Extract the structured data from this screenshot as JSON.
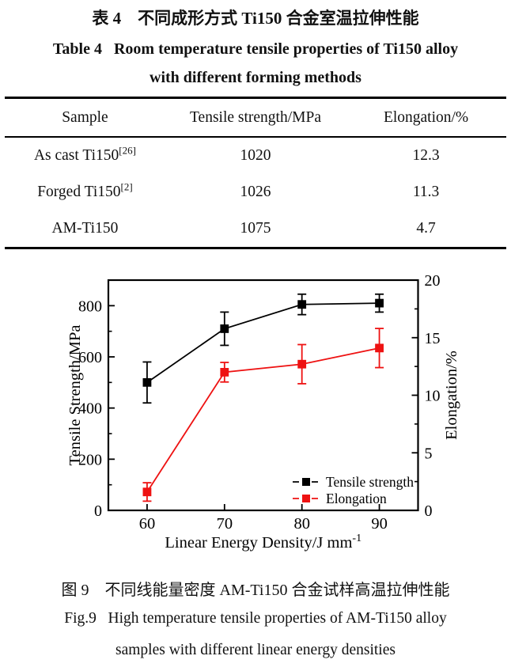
{
  "table_section": {
    "title_zh": "表 4    不同成形方式 Ti150 合金室温拉伸性能",
    "title_en_line1": "Table 4   Room temperature tensile properties of Ti150 alloy",
    "title_en_line2": "with different forming methods",
    "headers": [
      "Sample",
      "Tensile strength/MPa",
      "Elongation/%"
    ],
    "rows": [
      {
        "sample": "As cast Ti150",
        "ref": "[26]",
        "tensile": "1020",
        "elongation": "12.3"
      },
      {
        "sample": "Forged Ti150",
        "ref": "[2]",
        "tensile": "1026",
        "elongation": "11.3"
      },
      {
        "sample": "AM-Ti150",
        "ref": "",
        "tensile": "1075",
        "elongation": "4.7"
      }
    ]
  },
  "figure_section": {
    "caption_zh": "图 9    不同线能量密度 AM-Ti150 合金试样高温拉伸性能",
    "caption_en_line1": "Fig.9   High temperature tensile properties of AM-Ti150 alloy",
    "caption_en_line2": "samples with different linear energy densities"
  },
  "chart_data": {
    "type": "line",
    "x": [
      60,
      70,
      80,
      90
    ],
    "series": [
      {
        "name": "Tensile strength",
        "axis": "left",
        "color": "#000000",
        "values": [
          500,
          710,
          805,
          810
        ],
        "errors": [
          80,
          65,
          40,
          35
        ]
      },
      {
        "name": "Elongation",
        "axis": "right",
        "color": "#ee1212",
        "values": [
          1.6,
          12.0,
          12.7,
          14.1
        ],
        "errors": [
          0.8,
          0.85,
          1.7,
          1.7
        ]
      }
    ],
    "xlabel": "Linear Energy Density/J mm",
    "xlabel_superscript": "-1",
    "ylabel_left": "Tensile Strength/MPa",
    "ylabel_right": "Elongation/%",
    "xlim": [
      55,
      95
    ],
    "ylim_left": [
      0,
      900
    ],
    "ylim_right": [
      0,
      20
    ],
    "xticks": [
      60,
      70,
      80,
      90
    ],
    "yticks_left": [
      0,
      200,
      400,
      600,
      800
    ],
    "yticks_left_minor": [
      100,
      300,
      500,
      700
    ],
    "yticks_right": [
      0,
      5,
      10,
      15,
      20
    ],
    "yticks_right_minor": [
      2.5,
      7.5,
      12.5,
      17.5
    ],
    "grid": false,
    "legend_position": "lower-right",
    "marker": "square"
  }
}
